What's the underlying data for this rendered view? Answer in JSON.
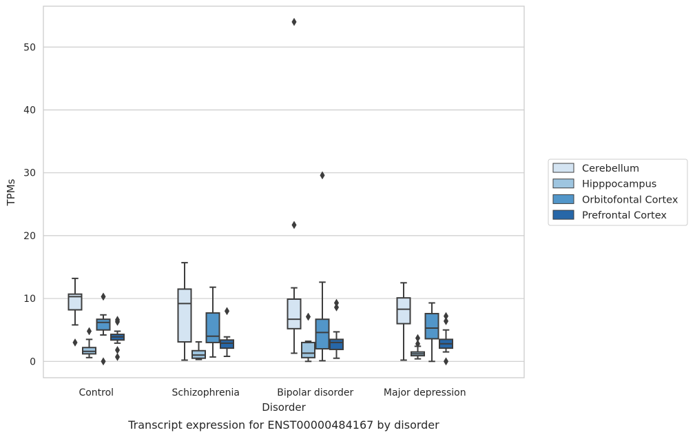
{
  "chart_data": {
    "type": "box",
    "title": "",
    "caption": "Transcript expression for ENST00000484167 by disorder",
    "xlabel": "Disorder",
    "ylabel": "TPMs",
    "ylim": [
      -2.6,
      56.5
    ],
    "yticks": [
      0,
      10,
      20,
      30,
      40,
      50
    ],
    "grid": "horizontal",
    "legend_position": "right",
    "categories": [
      "Control",
      "Schizophrenia",
      "Bipolar disorder",
      "Major depression"
    ],
    "series": [
      {
        "name": "Cerebellum",
        "color": "#d4e4f2",
        "boxes": [
          {
            "whisker_low": 5.8,
            "q1": 8.2,
            "median": 10.3,
            "q3": 10.7,
            "whisker_high": 13.2,
            "outliers": [
              3.0
            ]
          },
          {
            "whisker_low": 0.2,
            "q1": 3.1,
            "median": 9.2,
            "q3": 11.5,
            "whisker_high": 15.7,
            "outliers": []
          },
          {
            "whisker_low": 1.3,
            "q1": 5.2,
            "median": 6.7,
            "q3": 9.9,
            "whisker_high": 11.7,
            "outliers": [
              21.7,
              54.0
            ]
          },
          {
            "whisker_low": 0.2,
            "q1": 6.0,
            "median": 8.3,
            "q3": 10.1,
            "whisker_high": 12.5,
            "outliers": []
          }
        ]
      },
      {
        "name": "Hipppocampus",
        "color": "#9ec5e0",
        "boxes": [
          {
            "whisker_low": 0.6,
            "q1": 1.2,
            "median": 1.6,
            "q3": 2.2,
            "whisker_high": 3.5,
            "outliers": [
              4.8
            ]
          },
          {
            "whisker_low": 0.3,
            "q1": 0.5,
            "median": 1.0,
            "q3": 1.7,
            "whisker_high": 3.1,
            "outliers": []
          },
          {
            "whisker_low": 0.0,
            "q1": 0.6,
            "median": 1.3,
            "q3": 3.0,
            "whisker_high": 3.2,
            "outliers": [
              7.1
            ]
          },
          {
            "whisker_low": 0.4,
            "q1": 0.9,
            "median": 1.2,
            "q3": 1.5,
            "whisker_high": 2.4,
            "outliers": [
              2.8,
              3.7
            ]
          }
        ]
      },
      {
        "name": "Orbitofontal Cortex",
        "color": "#5296c9",
        "boxes": [
          {
            "whisker_low": 4.2,
            "q1": 5.0,
            "median": 6.2,
            "q3": 6.7,
            "whisker_high": 7.4,
            "outliers": [
              0.0,
              10.3
            ]
          },
          {
            "whisker_low": 0.7,
            "q1": 3.0,
            "median": 4.0,
            "q3": 7.7,
            "whisker_high": 11.8,
            "outliers": []
          },
          {
            "whisker_low": 0.1,
            "q1": 2.0,
            "median": 4.6,
            "q3": 6.7,
            "whisker_high": 12.6,
            "outliers": [
              29.6
            ]
          },
          {
            "whisker_low": 0.0,
            "q1": 3.6,
            "median": 5.3,
            "q3": 7.6,
            "whisker_high": 9.3,
            "outliers": []
          }
        ]
      },
      {
        "name": "Prefrontal Cortex",
        "color": "#2767a8",
        "boxes": [
          {
            "whisker_low": 2.9,
            "q1": 3.4,
            "median": 3.9,
            "q3": 4.3,
            "whisker_high": 4.8,
            "outliers": [
              0.7,
              1.8,
              6.3,
              6.6
            ]
          },
          {
            "whisker_low": 0.8,
            "q1": 2.1,
            "median": 2.9,
            "q3": 3.4,
            "whisker_high": 3.9,
            "outliers": [
              8.0
            ]
          },
          {
            "whisker_low": 0.5,
            "q1": 1.9,
            "median": 3.0,
            "q3": 3.5,
            "whisker_high": 4.7,
            "outliers": [
              8.6,
              9.3
            ]
          },
          {
            "whisker_low": 1.5,
            "q1": 2.1,
            "median": 2.8,
            "q3": 3.5,
            "whisker_high": 5.0,
            "outliers": [
              0.0,
              6.4,
              7.2
            ]
          }
        ]
      }
    ]
  }
}
